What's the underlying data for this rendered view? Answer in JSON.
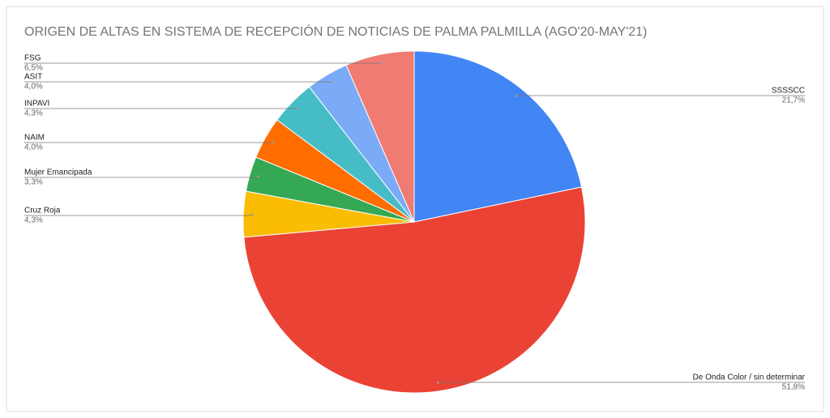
{
  "chart_data": {
    "type": "pie",
    "title": "ORIGEN DE ALTAS EN SISTEMA DE RECEPCIÓN DE NOTICIAS DE PALMA PALMILLA (AGO'20-MAY'21)",
    "categories": [
      "SSSSCC",
      "De Onda Color / sin determinar",
      "Cruz Roja",
      "Mujer Emancipada",
      "NAIM",
      "INPAVI",
      "ASIT",
      "FSG"
    ],
    "values": [
      21.7,
      51.8,
      4.3,
      3.3,
      4.0,
      4.3,
      4.0,
      6.5
    ],
    "value_labels": [
      "21,7%",
      "51,8%",
      "4,3%",
      "3,3%",
      "4,0%",
      "4,3%",
      "4,0%",
      "6,5%"
    ],
    "colors": [
      "#4285f4",
      "#ea4335",
      "#fbbc04",
      "#34a853",
      "#ff6d01",
      "#46bdc6",
      "#7baaf7",
      "#f07b72"
    ]
  }
}
